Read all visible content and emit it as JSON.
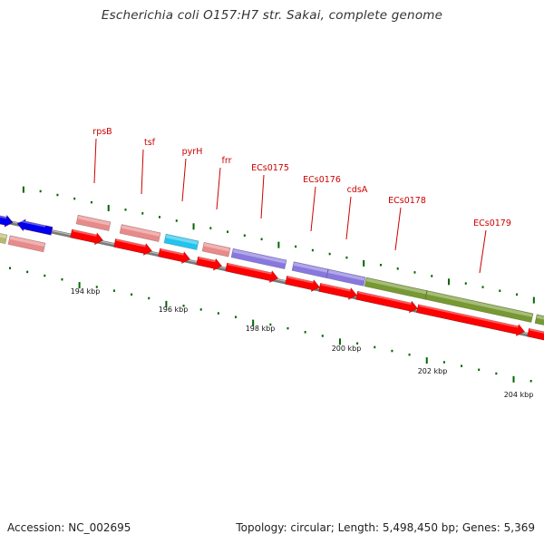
{
  "title": "Escherichia coli O157:H7 str. Sakai, complete genome",
  "footer": {
    "accession": "Accession: NC_002695",
    "summary": "Topology: circular; Length: 5,498,450 bp; Genes: 5,369"
  },
  "colors": {
    "backbone_dark": "#7a7a7a",
    "backbone_light": "#bdbdbd",
    "cds_red": "#ff0000",
    "pink": "#e88a8a",
    "cyan": "#22c4ee",
    "purple": "#8877dd",
    "olive": "#779933",
    "blue": "#0000ee",
    "khaki": "#b8b870",
    "label_red": "#cc0000",
    "tick_green": "#006600"
  },
  "gene_labels": [
    "rpsB",
    "tsf",
    "pyrH",
    "frr",
    "ECs0175",
    "ECs0176",
    "cdsA",
    "ECs0178",
    "ECs0179"
  ],
  "scale_labels": [
    "194 kbp",
    "196 kbp",
    "198 kbp",
    "200 kbp",
    "202 kbp",
    "204 kbp"
  ]
}
